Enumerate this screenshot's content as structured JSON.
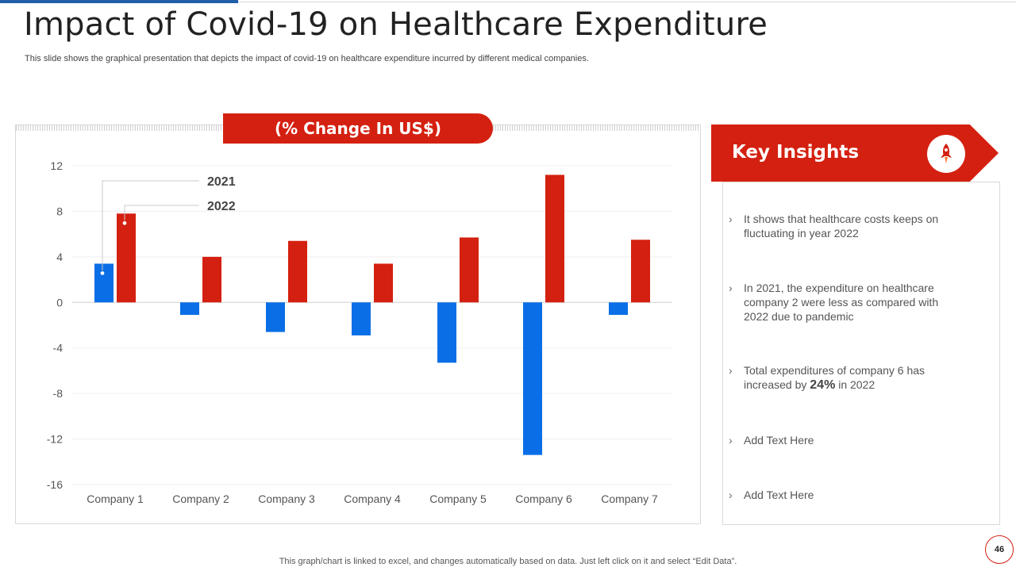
{
  "slide": {
    "title": "Impact of Covid-19 on Healthcare Expenditure",
    "subtitle": "This slide shows the graphical presentation that depicts the impact of covid-19 on healthcare expenditure incurred by different medical companies.",
    "chart_banner": "(% Change In US$)",
    "footnote": "This graph/chart is linked to excel,  and changes automatically based on data. Just left click on it and select “Edit Data”.",
    "page_number": "46"
  },
  "colors": {
    "accent_red": "#d42010",
    "series_2021": "#0a6ee6",
    "series_2022": "#d42010",
    "top_accent": "#1f5fa8"
  },
  "insights": {
    "title": "Key Insights",
    "icon": "rocket-icon",
    "items": [
      "It shows that healthcare costs keeps on fluctuating in year 2022",
      "In 2021, the expenditure on healthcare company 2 were less as compared with 2022 due to pandemic",
      "Add Text Here",
      "Add Text Here"
    ],
    "item3": {
      "prefix": "Total expenditures of company 6 has increased by",
      "highlight": "24%",
      "suffix": "in 2022"
    }
  },
  "chart_data": {
    "type": "bar",
    "title": "(% Change In US$)",
    "categories": [
      "Company 1",
      "Company 2",
      "Company 3",
      "Company 4",
      "Company 5",
      "Company 6",
      "Company 7"
    ],
    "series": [
      {
        "name": "2021",
        "values": [
          3.4,
          -1.1,
          -2.6,
          -2.9,
          -5.3,
          -13.4,
          -1.1
        ]
      },
      {
        "name": "2022",
        "values": [
          7.8,
          4.0,
          5.4,
          3.4,
          5.7,
          11.2,
          5.5
        ]
      }
    ],
    "yticks": [
      12,
      8,
      4,
      0,
      -4,
      -8,
      -12,
      -16
    ],
    "ylim": [
      -16,
      12
    ],
    "grid": true,
    "legend": "top-left, callout labels"
  }
}
